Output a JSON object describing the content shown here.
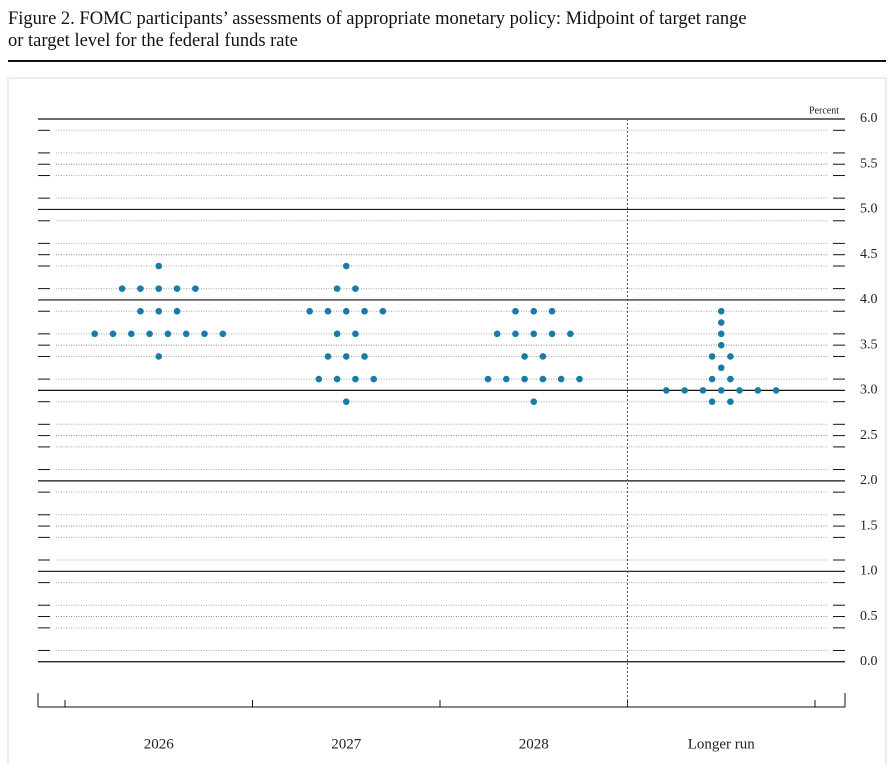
{
  "chart_data": {
    "type": "dot",
    "title": [
      "Figure 2. FOMC participants’ assessments of appropriate monetary policy: Midpoint of target range",
      "or target level for the federal funds rate"
    ],
    "unit_label": "Percent",
    "categories": [
      "2026",
      "2027",
      "2028",
      "Longer run"
    ],
    "values": [
      [
        4.375,
        4.125,
        4.125,
        4.125,
        4.125,
        4.125,
        3.875,
        3.875,
        3.875,
        3.625,
        3.625,
        3.625,
        3.625,
        3.625,
        3.625,
        3.625,
        3.625,
        3.375
      ],
      [
        4.375,
        4.125,
        4.125,
        3.875,
        3.875,
        3.875,
        3.875,
        3.875,
        3.625,
        3.625,
        3.375,
        3.375,
        3.375,
        3.125,
        3.125,
        3.125,
        3.125,
        2.875
      ],
      [
        3.875,
        3.875,
        3.875,
        3.625,
        3.625,
        3.625,
        3.625,
        3.625,
        3.375,
        3.375,
        3.125,
        3.125,
        3.125,
        3.125,
        3.125,
        3.125,
        2.875
      ],
      [
        3.875,
        3.75,
        3.625,
        3.5,
        3.375,
        3.375,
        3.25,
        3.125,
        3.125,
        3.0,
        3.0,
        3.0,
        3.0,
        3.0,
        3.0,
        3.0,
        2.875,
        2.875
      ]
    ],
    "color": "#1a7ca6",
    "ylim": [
      -0.5,
      6
    ],
    "yticks": [
      {
        "value": 0,
        "label": "0.0"
      },
      0.5,
      {
        "value": 1,
        "label": "1.0"
      },
      1.5,
      {
        "value": 2,
        "label": "2.0"
      },
      2.5,
      {
        "value": 3,
        "label": "3.0"
      },
      3.5,
      {
        "value": 4,
        "label": "4.0"
      },
      4.5,
      {
        "value": 5,
        "label": "5.0"
      },
      5.5,
      {
        "value": 6,
        "label": "6.0"
      }
    ]
  }
}
